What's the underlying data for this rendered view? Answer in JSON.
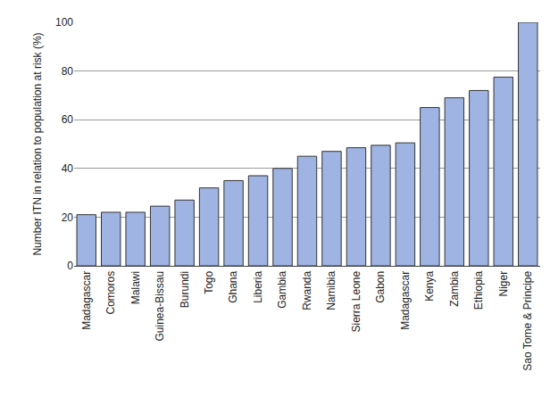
{
  "chart_data": {
    "type": "bar",
    "y_label": "Number ITN in relation to population at risk (%)",
    "categories": [
      "Madagascar",
      "Comoros",
      "Malawi",
      "Guinea-Bissau",
      "Burundi",
      "Togo",
      "Ghana",
      "Liberia",
      "Gambia",
      "Rwanda",
      "Namibia",
      "Sierra Leone",
      "Gabon",
      "Madagascar",
      "Kenya",
      "Zambia",
      "Ethiopia",
      "Niger",
      "Sao Tome & Principe"
    ],
    "values": [
      21,
      22,
      22,
      24.5,
      27,
      32,
      35,
      37,
      40,
      45,
      47,
      48.5,
      49.5,
      50.5,
      65,
      69,
      72,
      77.5,
      100
    ],
    "color": "#9fb4e3",
    "ylim": [
      0,
      100
    ],
    "yticks": [
      0,
      20,
      40,
      60,
      80,
      100
    ],
    "grid": true
  }
}
